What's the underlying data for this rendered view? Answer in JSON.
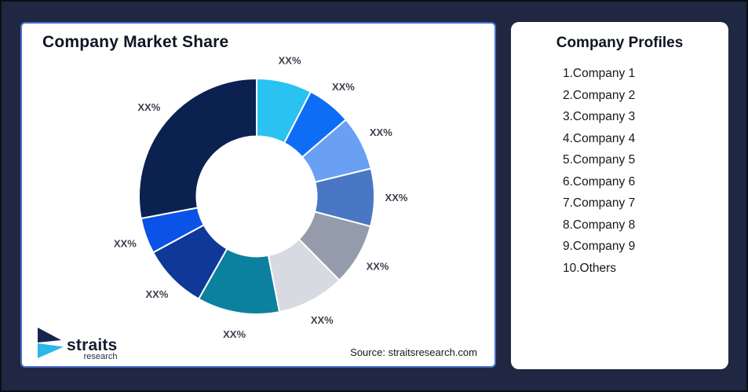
{
  "page": {
    "background_color": "#1f2743",
    "outer_border_color": "#0b0e16"
  },
  "left_panel": {
    "title": "Company Market Share",
    "source_note": "Source: straitsresearch.com",
    "border_color": "#4a70cc",
    "logo": {
      "brand": "straits",
      "sub_brand": "research",
      "icon_dark_color": "#16254c",
      "icon_cyan_color": "#2ab7ea"
    }
  },
  "right_panel": {
    "title": "Company Profiles",
    "items": [
      "1.Company 1",
      "2.Company 2",
      "3.Company 3",
      "4.Company 4",
      "5.Company 5",
      "6.Company 6",
      "7.Company 7",
      "8.Company 8",
      "9.Company 9",
      "10.Others"
    ]
  },
  "chart_data": {
    "type": "pie",
    "subtype": "donut",
    "title": "Company Market Share",
    "start_angle_deg": 0,
    "direction": "clockwise",
    "inner_radius_ratio": 0.51,
    "separator_color": "#ffffff",
    "label_text_color": "#3c414d",
    "legend": "none",
    "segments": [
      {
        "name": "Company 1",
        "label": "XX%",
        "value_pct": 7.6,
        "color": "#29c2f1"
      },
      {
        "name": "Company 2",
        "label": "XX%",
        "value_pct": 6.1,
        "color": "#0d6ef5"
      },
      {
        "name": "Company 3",
        "label": "XX%",
        "value_pct": 7.5,
        "color": "#6aa0f4"
      },
      {
        "name": "Company 4",
        "label": "XX%",
        "value_pct": 7.9,
        "color": "#4a77c4"
      },
      {
        "name": "Company 5",
        "label": "XX%",
        "value_pct": 8.5,
        "color": "#949cab"
      },
      {
        "name": "Company 6",
        "label": "XX%",
        "value_pct": 9.3,
        "color": "#d7dae0"
      },
      {
        "name": "Company 7",
        "label": "XX%",
        "value_pct": 11.3,
        "color": "#0c809f"
      },
      {
        "name": "Company 8",
        "label": "XX%",
        "value_pct": 8.9,
        "color": "#0f3899"
      },
      {
        "name": "Company 9",
        "label": "XX%",
        "value_pct": 4.9,
        "color": "#0b52e6"
      },
      {
        "name": "Others",
        "label": "XX%",
        "value_pct": 28.0,
        "color": "#0b2150"
      }
    ]
  }
}
